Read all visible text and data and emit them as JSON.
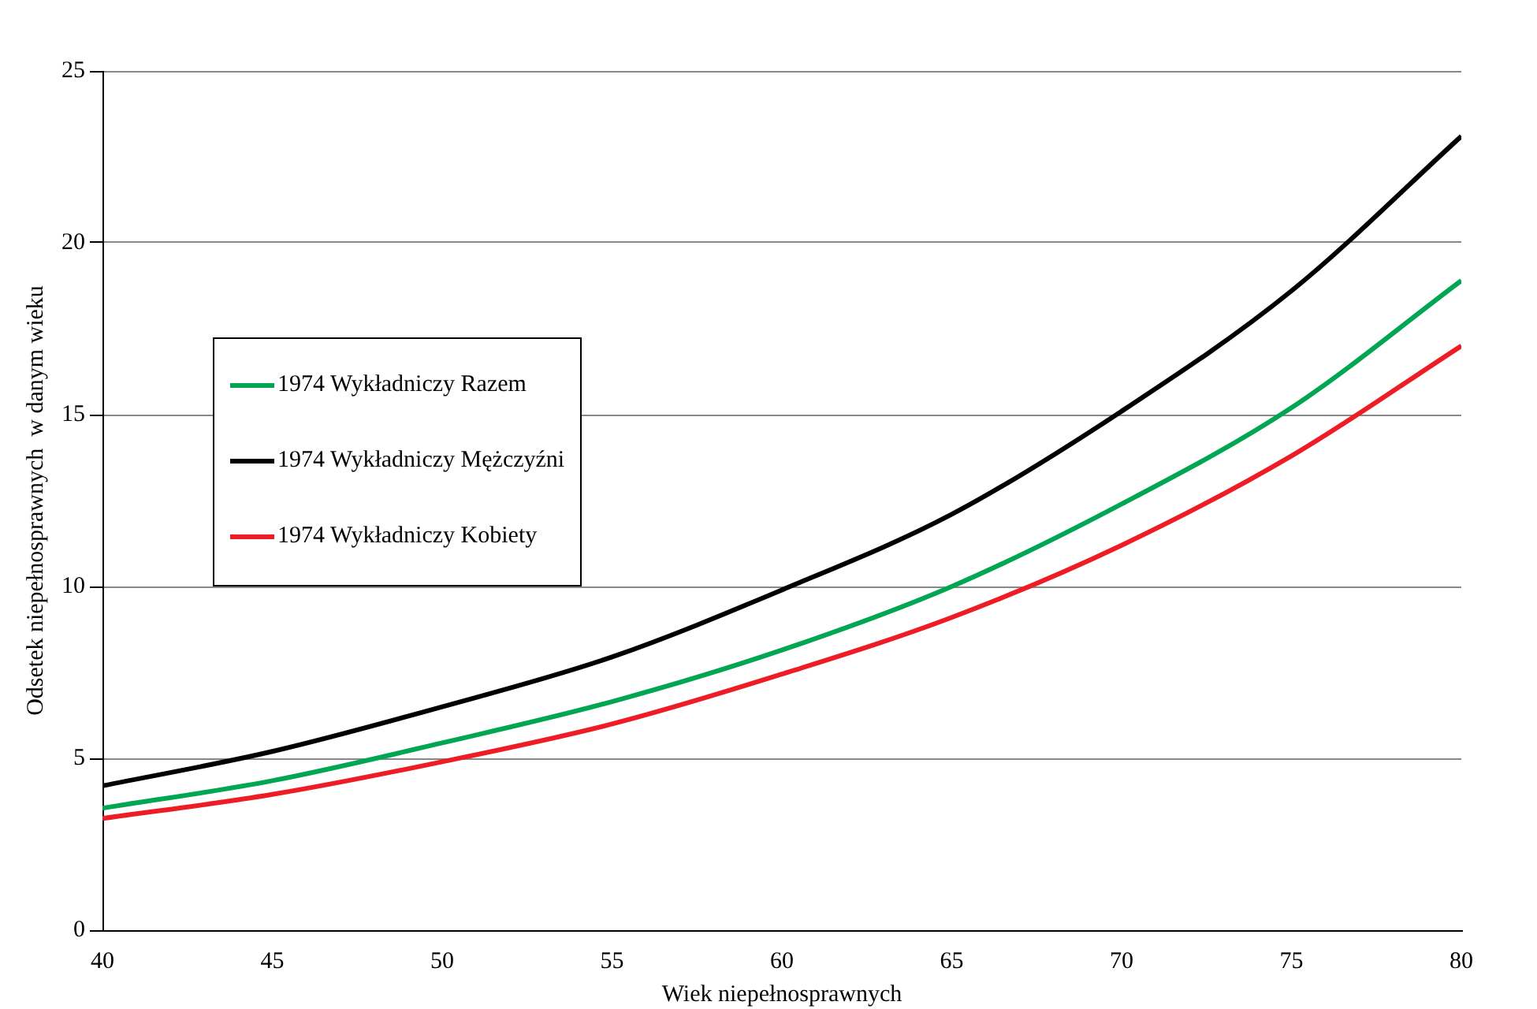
{
  "chart_data": {
    "type": "line",
    "xlabel": "Wiek niepełnosprawnych",
    "ylabel": "Odsetek niepełnosprawnych  w danym wieku",
    "x": [
      40,
      45,
      50,
      55,
      60,
      65,
      70,
      75,
      80
    ],
    "series": [
      {
        "name": "1974 Wykładniczy Razem",
        "color": "#00a651",
        "values": [
          3.55,
          4.35,
          5.45,
          6.65,
          8.15,
          10.0,
          12.4,
          15.2,
          18.9
        ]
      },
      {
        "name": "1974 Wykładniczy Mężczyźni",
        "color": "#000000",
        "values": [
          4.2,
          5.2,
          6.5,
          7.95,
          9.9,
          12.1,
          15.1,
          18.6,
          23.1
        ]
      },
      {
        "name": "1974 Wykładniczy Kobiety",
        "color": "#ee1c25",
        "values": [
          3.25,
          3.95,
          4.9,
          6.0,
          7.45,
          9.1,
          11.2,
          13.8,
          17.0
        ]
      }
    ],
    "xlim": [
      40,
      80
    ],
    "xticks": [
      40,
      45,
      50,
      55,
      60,
      65,
      70,
      75,
      80
    ],
    "ylim": [
      0,
      25
    ],
    "yticks": [
      0,
      5,
      10,
      15,
      20,
      25
    ],
    "grid": "y",
    "legend": "left",
    "marker": "none",
    "line_style": "solid"
  }
}
